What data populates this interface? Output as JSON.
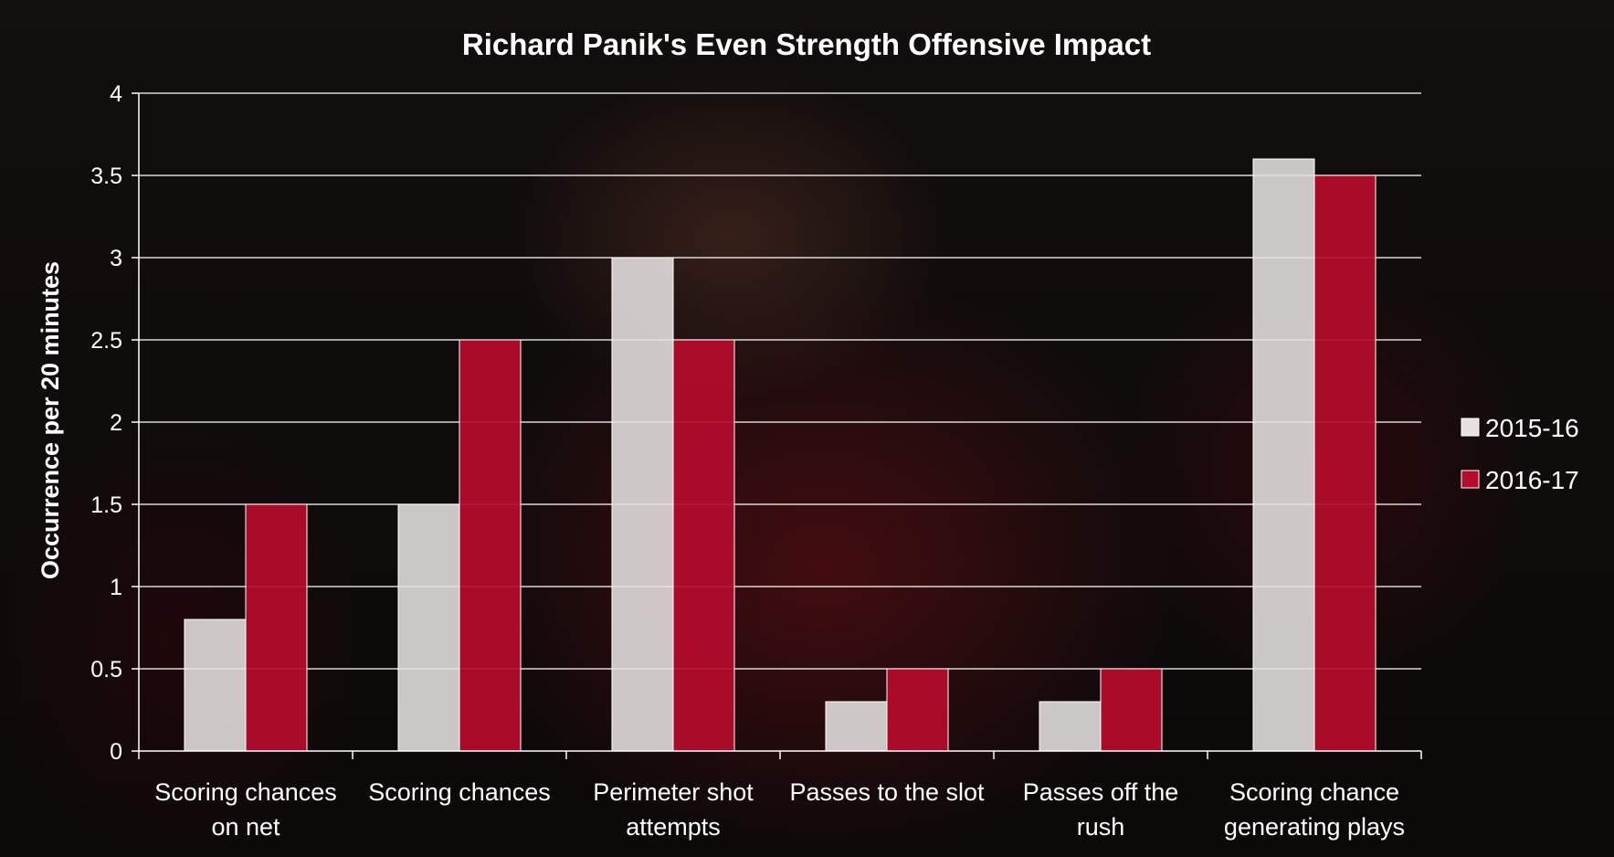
{
  "chart_data": {
    "type": "bar",
    "title": "Richard Panik's Even Strength Offensive Impact",
    "ylabel": "Occurrence per 20 minutes",
    "xlabel": "",
    "ylim": [
      0,
      4
    ],
    "yticks": [
      "0",
      "0.5",
      "1",
      "1.5",
      "2",
      "2.5",
      "3",
      "3.5",
      "4"
    ],
    "grid": true,
    "legend_position": "right",
    "categories": [
      [
        "Scoring chances",
        "on net"
      ],
      [
        "Scoring chances"
      ],
      [
        "Perimeter shot",
        "attempts"
      ],
      [
        "Passes to the slot"
      ],
      [
        "Passes off the",
        "rush"
      ],
      [
        "Scoring chance",
        "generating plays"
      ]
    ],
    "series": [
      {
        "name": "2015-16",
        "color": "#e6e1e1",
        "values": [
          0.8,
          1.5,
          3.0,
          0.3,
          0.3,
          3.6
        ]
      },
      {
        "name": "2016-17",
        "color": "#b50c2c",
        "values": [
          1.5,
          2.5,
          2.5,
          0.5,
          0.5,
          3.5
        ]
      }
    ]
  }
}
